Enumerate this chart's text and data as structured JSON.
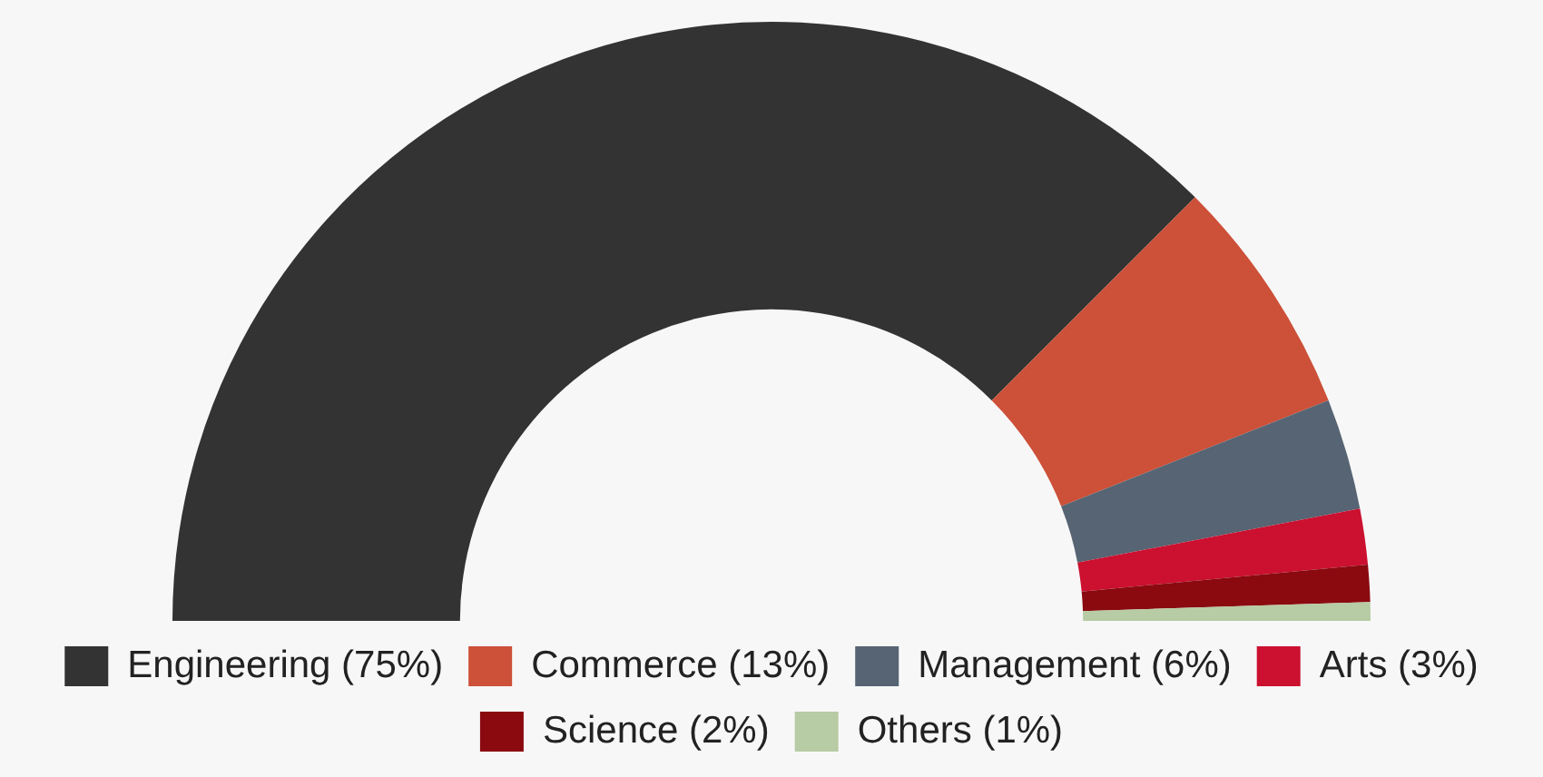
{
  "chart_data": {
    "type": "donut",
    "categories": [
      "Engineering (75%)",
      "Commerce (13%)",
      "Management (6%)",
      "Arts (3%)",
      "Science (2%)",
      "Others (1%)"
    ],
    "values": [
      75,
      13,
      6,
      3,
      2,
      1
    ],
    "colors": [
      "#333333",
      "#cd5038",
      "#566473",
      "#cc1030",
      "#8a0a10",
      "#b7cba4"
    ],
    "legend": "bottom"
  }
}
